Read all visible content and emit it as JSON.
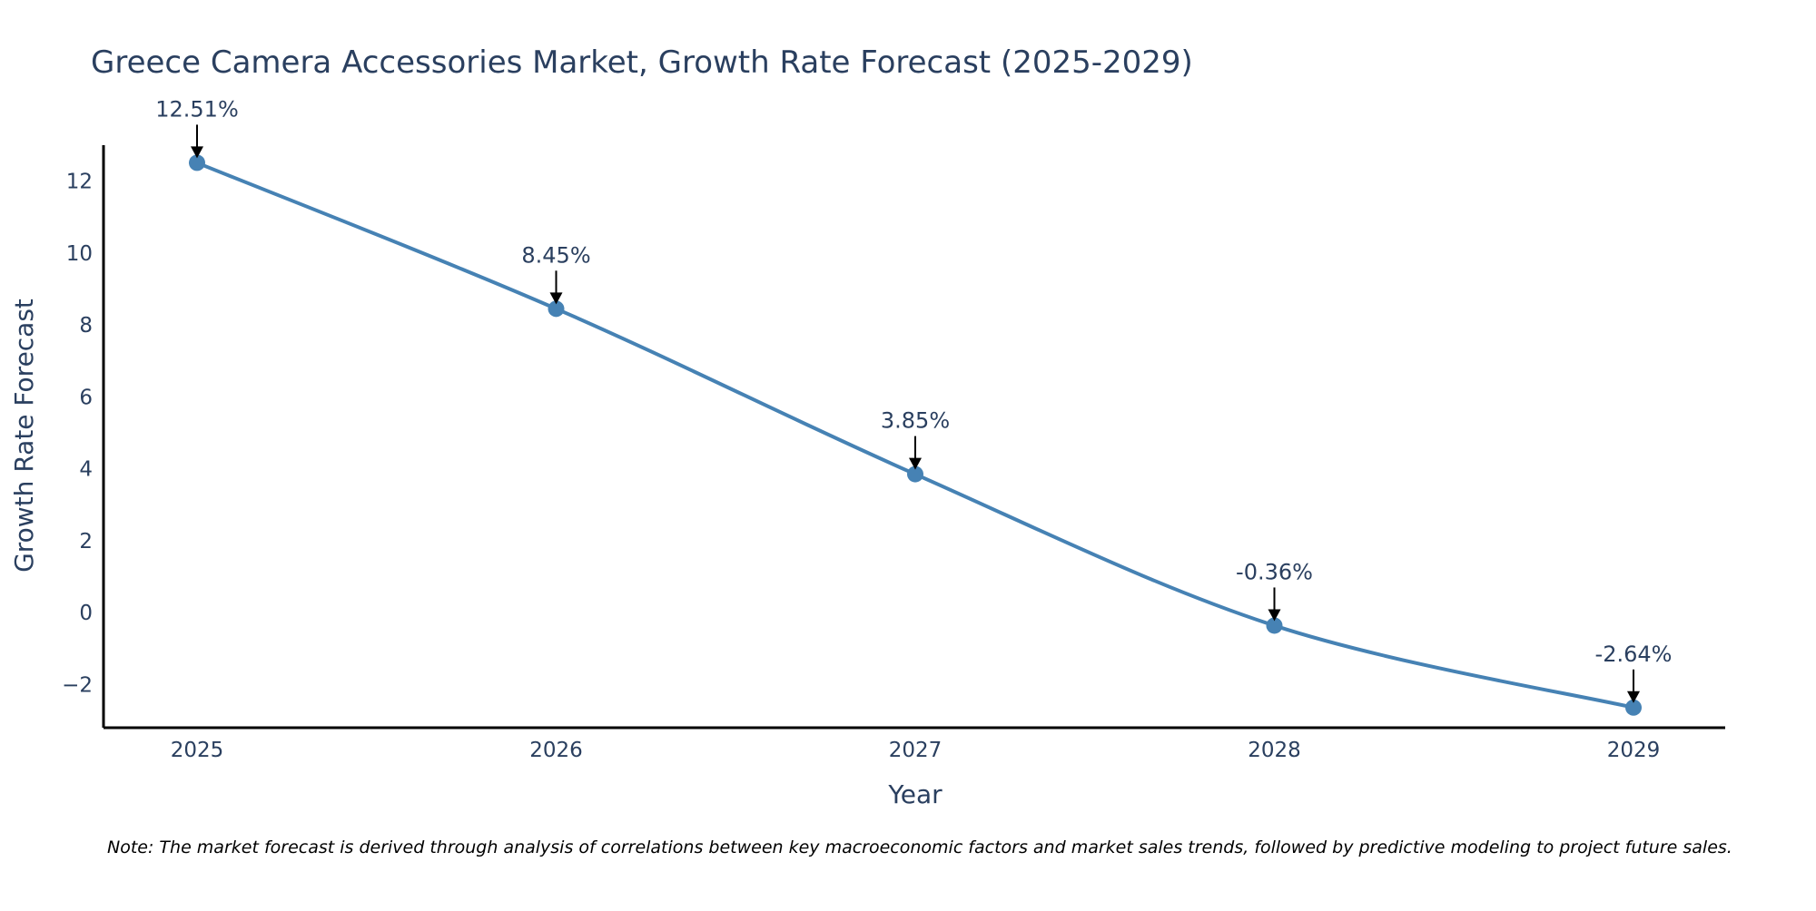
{
  "chart_data": {
    "type": "line",
    "title": "Greece Camera Accessories Market, Growth Rate Forecast (2025-2029)",
    "xlabel": "Year",
    "ylabel": "Growth Rate Forecast",
    "categories": [
      "2025",
      "2026",
      "2027",
      "2028",
      "2029"
    ],
    "values": [
      12.51,
      8.45,
      3.85,
      -0.36,
      -2.64
    ],
    "data_labels": [
      "12.51%",
      "8.45%",
      "3.85%",
      "-0.36%",
      "-2.64%"
    ],
    "ylim": [
      -3.2,
      13.0
    ],
    "yticks": [
      -2,
      0,
      2,
      4,
      6,
      8,
      10,
      12
    ],
    "ytick_labels": [
      "−2",
      "0",
      "2",
      "4",
      "6",
      "8",
      "10",
      "12"
    ],
    "line_shape": "spline",
    "grid": false,
    "series_color": "#4682b4",
    "note": "Note: The market forecast is derived through analysis of correlations between key macroeconomic factors and market sales trends, followed by predictive modeling to project future sales."
  }
}
